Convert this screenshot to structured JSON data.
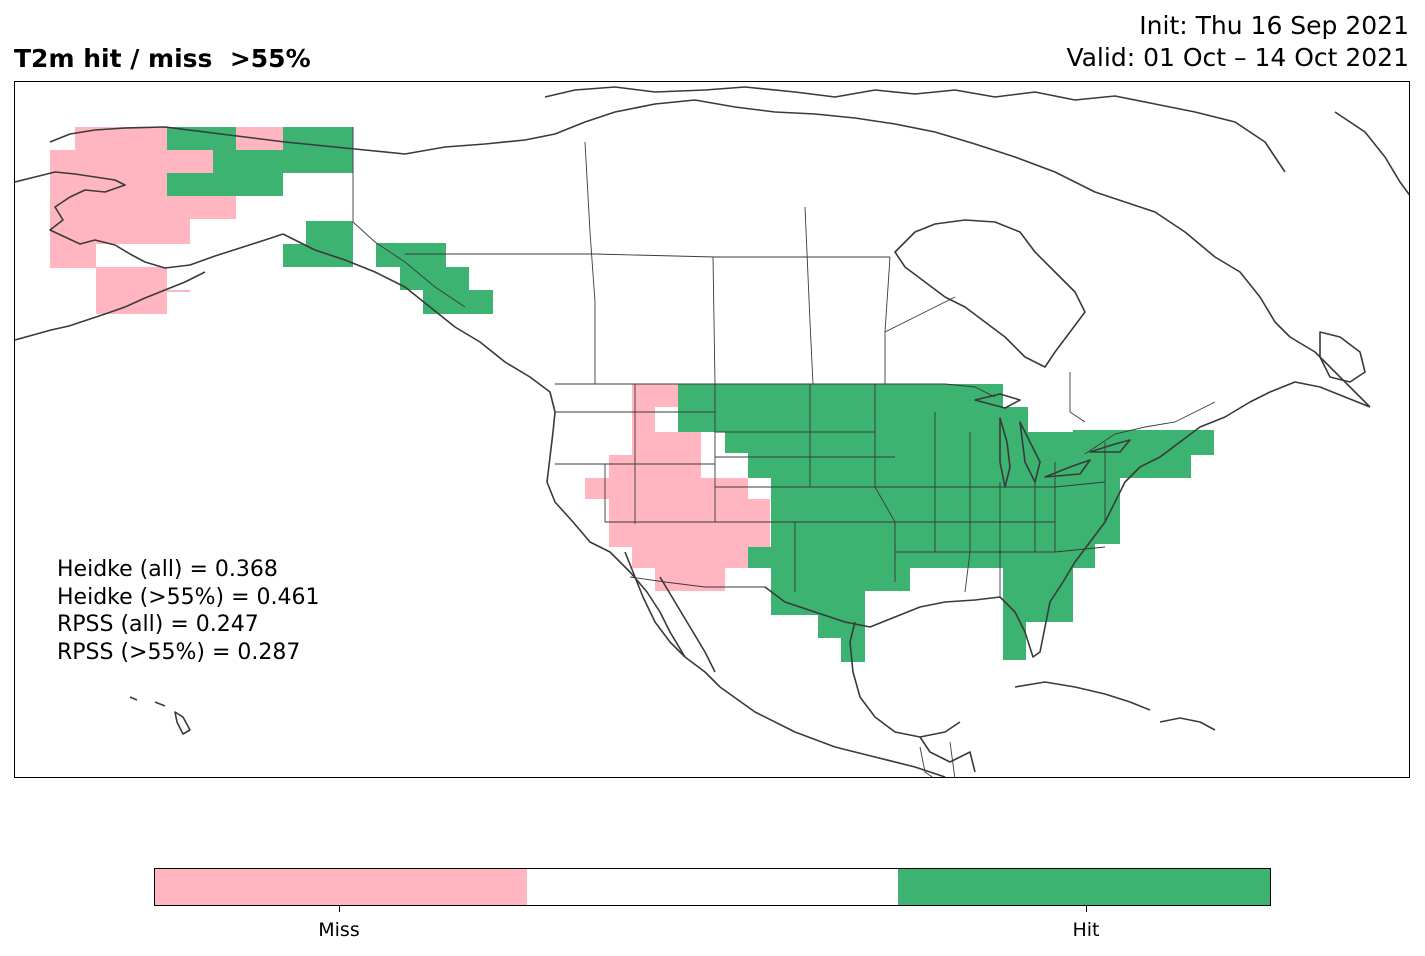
{
  "title_left": "T2m hit / miss  >55%",
  "title_right": {
    "init": "Init: Thu 16 Sep 2021",
    "valid": "Valid: 01 Oct – 14 Oct 2021"
  },
  "scores": {
    "heidke_all": "Heidke (all) = 0.368",
    "heidke_55": "Heidke (>55%) = 0.461",
    "rpss_all": "RPSS (all) = 0.247",
    "rpss_55": "RPSS (>55%) = 0.287"
  },
  "legend": {
    "miss_label": "Miss",
    "hit_label": "Hit",
    "colors": {
      "miss": "#ffb6c1",
      "neutral": "#ffffff",
      "hit": "#3cb371"
    }
  },
  "map": {
    "region": "North America",
    "layers": [
      "coastlines",
      "country borders",
      "US states / Canadian provinces",
      "hit/miss grid cells"
    ]
  }
}
